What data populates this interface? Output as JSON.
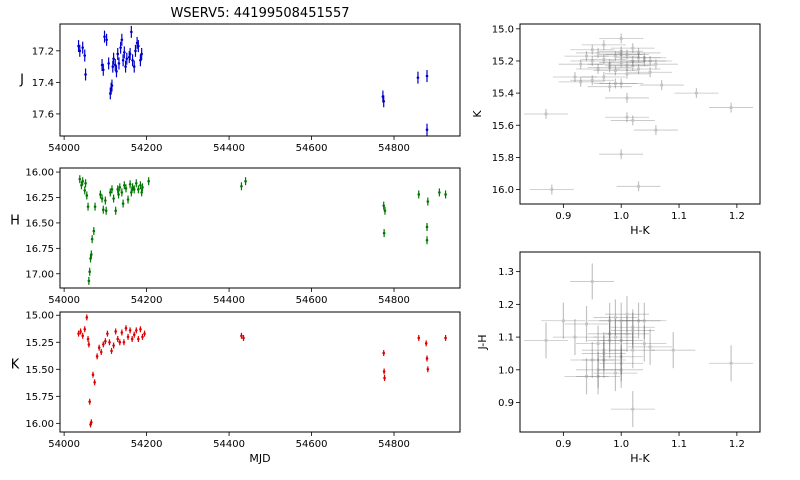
{
  "figure": {
    "title": "WSERV5: 44199508451557"
  },
  "colors": {
    "J": "#0000cc",
    "H": "#007700",
    "K": "#dd0000",
    "color_mag": "#555555"
  },
  "chart_data": [
    {
      "id": "J",
      "type": "scatter",
      "title": "WSERV5: 44199508451557",
      "xlabel": "",
      "ylabel": "J",
      "xlim": [
        53990,
        54960
      ],
      "ylim": [
        17.74,
        17.03
      ],
      "y_inverted": true,
      "xticks": [
        54000,
        54200,
        54400,
        54600,
        54800
      ],
      "yticks": [
        17.2,
        17.4,
        17.6
      ],
      "ytick_labels": [
        "17.2",
        "17.4",
        "17.6"
      ],
      "error_bars": true,
      "x": [
        54035,
        54038,
        54045,
        54050,
        54052,
        54092,
        54095,
        54098,
        54103,
        54108,
        54112,
        54114,
        54116,
        54118,
        54120,
        54124,
        54127,
        54130,
        54133,
        54137,
        54140,
        54143,
        54146,
        54149,
        54152,
        54158,
        54160,
        54163,
        54166,
        54170,
        54173,
        54177,
        54180,
        54185,
        54188,
        54773,
        54775,
        54858,
        54880,
        54880
      ],
      "y": [
        17.17,
        17.2,
        17.18,
        17.23,
        17.35,
        17.29,
        17.32,
        17.11,
        17.13,
        17.28,
        17.47,
        17.44,
        17.42,
        17.3,
        17.25,
        17.29,
        17.33,
        17.22,
        17.28,
        17.18,
        17.13,
        17.26,
        17.21,
        17.3,
        17.25,
        17.24,
        17.22,
        17.08,
        17.26,
        17.3,
        17.2,
        17.15,
        17.17,
        17.26,
        17.22,
        17.49,
        17.52,
        17.37,
        17.36,
        17.7
      ]
    },
    {
      "id": "H",
      "type": "scatter",
      "xlabel": "",
      "ylabel": "H",
      "xlim": [
        53990,
        54960
      ],
      "ylim": [
        17.14,
        15.96
      ],
      "y_inverted": true,
      "xticks": [
        54000,
        54200,
        54400,
        54600,
        54800
      ],
      "yticks": [
        16.0,
        16.25,
        16.5,
        16.75,
        17.0
      ],
      "ytick_labels": [
        "16.00",
        "16.25",
        "16.50",
        "16.75",
        "17.00"
      ],
      "error_bars": true,
      "x": [
        54038,
        54042,
        54045,
        54050,
        54052,
        54055,
        54058,
        54060,
        54062,
        54064,
        54066,
        54068,
        54072,
        54075,
        54088,
        54092,
        54095,
        54100,
        54102,
        54112,
        54116,
        54120,
        54125,
        54130,
        54132,
        54135,
        54140,
        54143,
        54146,
        54150,
        54155,
        54160,
        54163,
        54166,
        54170,
        54175,
        54180,
        54185,
        54188,
        54190,
        54205,
        54430,
        54440,
        54775,
        54778,
        54776,
        54860,
        54880,
        54880,
        54882,
        54910,
        54925
      ],
      "y": [
        16.07,
        16.13,
        16.09,
        16.18,
        16.11,
        16.23,
        16.34,
        17.07,
        16.98,
        16.85,
        16.81,
        16.66,
        16.58,
        16.34,
        16.22,
        16.26,
        16.37,
        16.28,
        16.38,
        16.2,
        16.17,
        16.26,
        16.38,
        16.17,
        16.22,
        16.15,
        16.2,
        16.31,
        16.13,
        16.16,
        16.27,
        16.12,
        16.2,
        16.15,
        16.17,
        16.11,
        16.17,
        16.13,
        16.2,
        16.15,
        16.09,
        16.14,
        16.09,
        16.33,
        16.38,
        16.6,
        16.22,
        16.54,
        16.67,
        16.29,
        16.2,
        16.22
      ]
    },
    {
      "id": "K",
      "type": "scatter",
      "xlabel": "MJD",
      "ylabel": "K",
      "xlim": [
        53990,
        54960
      ],
      "ylim": [
        16.08,
        14.97
      ],
      "y_inverted": true,
      "xticks": [
        54000,
        54200,
        54400,
        54600,
        54800
      ],
      "yticks": [
        15.0,
        15.25,
        15.5,
        15.75,
        16.0
      ],
      "ytick_labels": [
        "15.00",
        "15.25",
        "15.50",
        "15.75",
        "16.00"
      ],
      "error_bars": true,
      "x": [
        54035,
        54040,
        54045,
        54050,
        54055,
        54058,
        54060,
        54062,
        54064,
        54066,
        54070,
        54074,
        54080,
        54085,
        54090,
        54095,
        54100,
        54105,
        54110,
        54115,
        54120,
        54125,
        54130,
        54135,
        54140,
        54145,
        54150,
        54155,
        54160,
        54165,
        54170,
        54175,
        54180,
        54185,
        54190,
        54195,
        54430,
        54435,
        54775,
        54776,
        54777,
        54860,
        54878,
        54880,
        54882,
        54925
      ],
      "y": [
        15.17,
        15.15,
        15.19,
        15.13,
        15.02,
        15.22,
        15.27,
        15.8,
        16.01,
        15.99,
        15.55,
        15.62,
        15.38,
        15.3,
        15.34,
        15.27,
        15.24,
        15.17,
        15.25,
        15.33,
        15.28,
        15.15,
        15.22,
        15.25,
        15.16,
        15.25,
        15.12,
        15.2,
        15.14,
        15.22,
        15.18,
        15.14,
        15.22,
        15.13,
        15.2,
        15.17,
        15.19,
        15.21,
        15.35,
        15.52,
        15.58,
        15.21,
        15.26,
        15.4,
        15.5,
        15.21
      ]
    },
    {
      "id": "color-mag",
      "type": "scatter",
      "xlabel": "H-K",
      "ylabel": "K",
      "xlim": [
        0.825,
        1.24
      ],
      "ylim": [
        16.09,
        14.97
      ],
      "y_inverted": true,
      "xticks": [
        0.9,
        1.0,
        1.1,
        1.2
      ],
      "xtick_labels": [
        "0.9",
        "1.0",
        "1.1",
        "1.2"
      ],
      "yticks": [
        15.0,
        15.2,
        15.4,
        15.6,
        15.8,
        16.0
      ],
      "ytick_labels": [
        "15.0",
        "15.2",
        "15.4",
        "15.6",
        "15.8",
        "16.0"
      ],
      "error_bars": true,
      "x": [
        0.94,
        0.95,
        0.96,
        0.97,
        0.98,
        0.99,
        1.0,
        1.01,
        1.02,
        1.03,
        0.93,
        0.96,
        0.98,
        1.0,
        1.02,
        1.04,
        1.06,
        0.97,
        0.99,
        1.01,
        1.03,
        1.05,
        0.92,
        0.95,
        0.98,
        1.0,
        1.07,
        0.97,
        1.0,
        1.02,
        1.13,
        1.19,
        0.87,
        1.01,
        1.02,
        1.06,
        1.0,
        1.03,
        0.99,
        1.05,
        0.95,
        0.93,
        0.88,
        1.01,
        1.0,
        1.01,
        1.03,
        1.04
      ],
      "y": [
        15.17,
        15.2,
        15.15,
        15.19,
        15.22,
        15.17,
        15.14,
        15.16,
        15.2,
        15.18,
        15.22,
        15.25,
        15.24,
        15.21,
        15.23,
        15.2,
        15.22,
        15.3,
        15.26,
        15.28,
        15.25,
        15.27,
        15.3,
        15.32,
        15.36,
        15.34,
        15.35,
        15.1,
        15.06,
        15.12,
        15.4,
        15.49,
        15.53,
        15.43,
        15.57,
        15.63,
        15.78,
        15.98,
        15.34,
        15.2,
        15.13,
        15.33,
        16.0,
        15.55,
        15.16,
        15.23,
        15.15,
        15.18
      ]
    },
    {
      "id": "color-color",
      "type": "scatter",
      "xlabel": "H-K",
      "ylabel": "J-H",
      "xlim": [
        0.825,
        1.24
      ],
      "ylim": [
        0.81,
        1.36
      ],
      "xticks": [
        0.9,
        1.0,
        1.1,
        1.2
      ],
      "xtick_labels": [
        "0.9",
        "1.0",
        "1.1",
        "1.2"
      ],
      "yticks": [
        0.9,
        1.0,
        1.1,
        1.2,
        1.3
      ],
      "ytick_labels": [
        "0.9",
        "1.0",
        "1.1",
        "1.2",
        "1.3"
      ],
      "error_bars": true,
      "x": [
        0.87,
        0.9,
        0.92,
        0.94,
        0.95,
        0.96,
        0.97,
        0.98,
        0.99,
        1.0,
        1.01,
        1.02,
        1.03,
        1.04,
        0.95,
        0.96,
        0.97,
        0.98,
        0.99,
        1.0,
        1.01,
        1.02,
        0.96,
        0.97,
        0.99,
        1.0,
        1.02,
        1.05,
        1.09,
        1.19,
        1.02,
        0.94,
        0.98,
        1.0,
        1.04,
        1.0
      ],
      "y": [
        1.09,
        1.15,
        1.1,
        1.14,
        1.27,
        1.08,
        1.06,
        1.15,
        1.16,
        1.15,
        1.17,
        1.12,
        1.15,
        1.08,
        1.03,
        1.0,
        1.05,
        1.09,
        1.1,
        1.04,
        1.11,
        1.06,
        0.98,
        1.03,
        0.99,
        1.02,
        1.13,
        1.07,
        1.06,
        1.02,
        0.88,
        0.98,
        1.11,
        1.09,
        1.15,
        1.0
      ]
    }
  ]
}
